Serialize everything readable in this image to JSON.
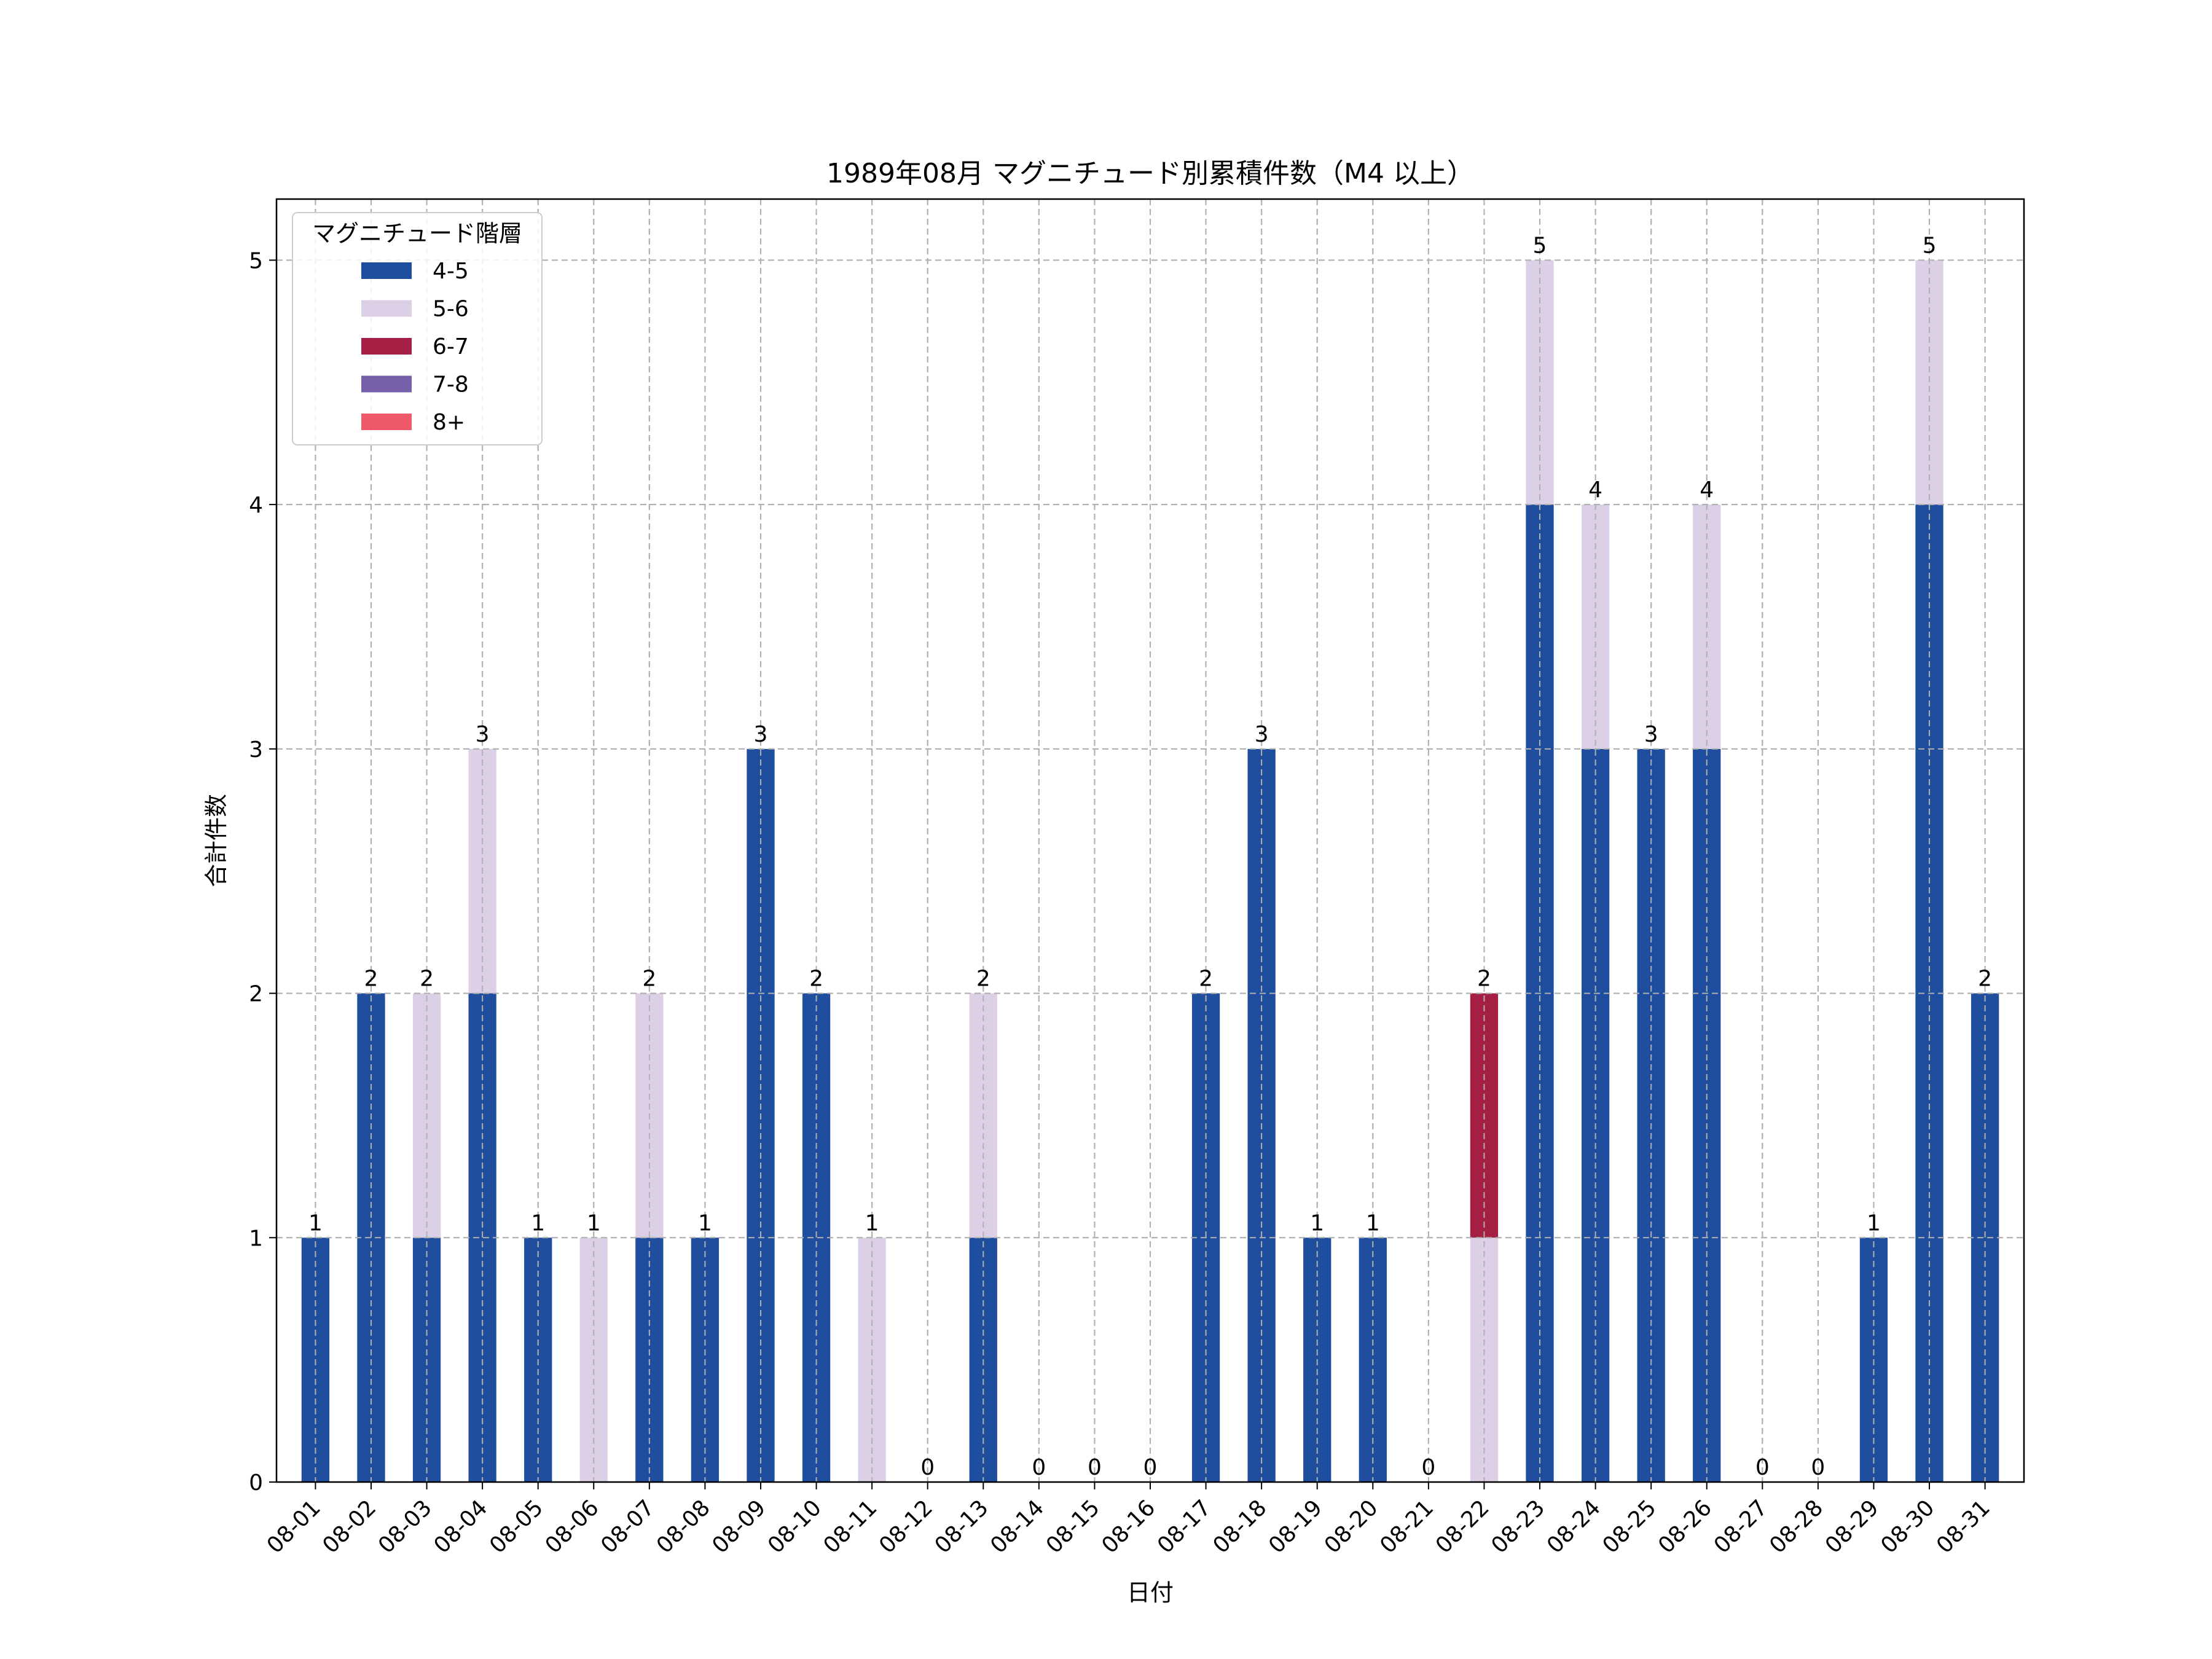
{
  "chart_data": {
    "type": "bar",
    "stacked": true,
    "title": "1989年08月 マグニチュード別累積件数（M4 以上）",
    "xlabel": "日付",
    "ylabel": "合計件数",
    "ylim": [
      0,
      5.25
    ],
    "yticks": [
      0,
      1,
      2,
      3,
      4,
      5
    ],
    "grid": true,
    "legend": {
      "title": "マグニチュード階層",
      "placement": "top-left"
    },
    "categories": [
      "08-01",
      "08-02",
      "08-03",
      "08-04",
      "08-05",
      "08-06",
      "08-07",
      "08-08",
      "08-09",
      "08-10",
      "08-11",
      "08-12",
      "08-13",
      "08-14",
      "08-15",
      "08-16",
      "08-17",
      "08-18",
      "08-19",
      "08-20",
      "08-21",
      "08-22",
      "08-23",
      "08-24",
      "08-25",
      "08-26",
      "08-27",
      "08-28",
      "08-29",
      "08-30",
      "08-31"
    ],
    "series": [
      {
        "name": "4-5",
        "color": "#1f4e9e",
        "values": [
          1,
          2,
          1,
          2,
          1,
          0,
          1,
          1,
          3,
          2,
          0,
          0,
          1,
          0,
          0,
          0,
          2,
          3,
          1,
          1,
          0,
          0,
          4,
          3,
          3,
          3,
          0,
          0,
          1,
          4,
          2
        ]
      },
      {
        "name": "5-6",
        "color": "#dcd0e6",
        "values": [
          0,
          0,
          1,
          1,
          0,
          1,
          1,
          0,
          0,
          0,
          1,
          0,
          1,
          0,
          0,
          0,
          0,
          0,
          0,
          0,
          0,
          1,
          1,
          1,
          0,
          1,
          0,
          0,
          0,
          1,
          0
        ]
      },
      {
        "name": "6-7",
        "color": "#a51f45",
        "values": [
          0,
          0,
          0,
          0,
          0,
          0,
          0,
          0,
          0,
          0,
          0,
          0,
          0,
          0,
          0,
          0,
          0,
          0,
          0,
          0,
          0,
          1,
          0,
          0,
          0,
          0,
          0,
          0,
          0,
          0,
          0
        ]
      },
      {
        "name": "7-8",
        "color": "#7560a9",
        "values": [
          0,
          0,
          0,
          0,
          0,
          0,
          0,
          0,
          0,
          0,
          0,
          0,
          0,
          0,
          0,
          0,
          0,
          0,
          0,
          0,
          0,
          0,
          0,
          0,
          0,
          0,
          0,
          0,
          0,
          0,
          0
        ]
      },
      {
        "name": "8+",
        "color": "#ee5a6a",
        "values": [
          0,
          0,
          0,
          0,
          0,
          0,
          0,
          0,
          0,
          0,
          0,
          0,
          0,
          0,
          0,
          0,
          0,
          0,
          0,
          0,
          0,
          0,
          0,
          0,
          0,
          0,
          0,
          0,
          0,
          0,
          0
        ]
      }
    ],
    "totals": [
      1,
      2,
      2,
      3,
      1,
      1,
      2,
      1,
      3,
      2,
      1,
      0,
      2,
      0,
      0,
      0,
      2,
      3,
      1,
      1,
      0,
      2,
      5,
      4,
      3,
      4,
      0,
      0,
      1,
      5,
      2
    ]
  }
}
